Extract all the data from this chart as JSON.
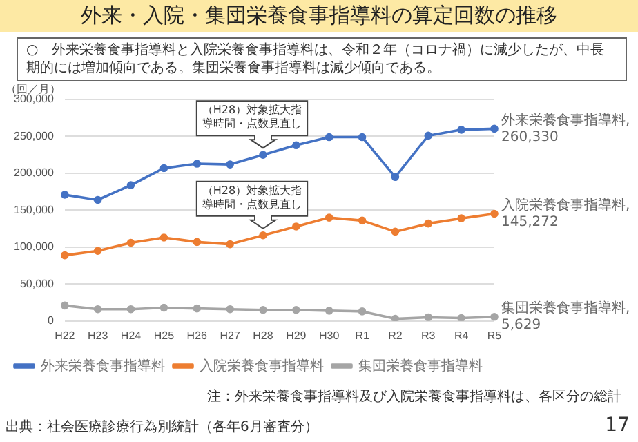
{
  "chart_data": {
    "type": "line",
    "title": "外来・入院・集団栄養食事指導料の算定回数の推移",
    "subtitle": "○　外来栄養食事指導料と入院栄養食事指導料は、令和２年（コロナ禍）に減少したが、中長期的には増加傾向である。集団栄養食事指導料は減少傾向である。",
    "ylabel": "（回／月）",
    "categories": [
      "H22",
      "H23",
      "H24",
      "H25",
      "H26",
      "H27",
      "H28",
      "H29",
      "H30",
      "R1",
      "R2",
      "R3",
      "R4",
      "R5"
    ],
    "series": [
      {
        "name": "外来栄養食事指導料",
        "color": "#4472c4",
        "values": [
          171000,
          164000,
          184000,
          207000,
          213000,
          212000,
          225000,
          238000,
          249000,
          249000,
          195000,
          251000,
          259000,
          260330
        ],
        "value_labels": [
          null,
          null,
          null,
          null,
          null,
          null,
          null,
          null,
          null,
          null,
          null,
          null,
          null,
          "外来栄養食事指導料,\n260,330"
        ]
      },
      {
        "name": "入院栄養食事指導料",
        "color": "#ed7d31",
        "values": [
          89000,
          95000,
          106000,
          113000,
          107000,
          104000,
          116000,
          128000,
          140000,
          136000,
          121000,
          132000,
          139000,
          145272
        ],
        "value_labels": [
          null,
          null,
          null,
          null,
          null,
          null,
          null,
          null,
          null,
          null,
          null,
          null,
          null,
          "入院栄養食事指導料,\n145,272"
        ]
      },
      {
        "name": "集団栄養食事指導料",
        "color": "#a5a5a5",
        "values": [
          21000,
          16000,
          16000,
          18000,
          17000,
          16000,
          15000,
          15000,
          14000,
          13000,
          3000,
          5000,
          4000,
          5629
        ],
        "value_labels": [
          null,
          null,
          null,
          null,
          null,
          null,
          null,
          null,
          null,
          null,
          null,
          null,
          null,
          "集団栄養食事指導料,\n5,629"
        ]
      }
    ],
    "ylim": [
      0,
      300000
    ],
    "yticks": [
      {
        "value": 0,
        "label": "0"
      },
      {
        "value": 50000,
        "label": "50,000"
      },
      {
        "value": 100000,
        "label": "100,000"
      },
      {
        "value": 150000,
        "label": "150,000"
      },
      {
        "value": 200000,
        "label": "200,000"
      },
      {
        "value": 250000,
        "label": "250,000"
      },
      {
        "value": 300000,
        "label": "300,000"
      }
    ],
    "grid": "y",
    "legend": "bottom",
    "marker": "circle",
    "annotations": [
      {
        "text": "（H28）対象拡大指導時間・点数見直し",
        "x": "H28",
        "y": 225000
      },
      {
        "text": "（H28）対象拡大指導時間・点数見直し",
        "x": "H28",
        "y": 116000
      },
      "注：外来栄養食事指導料及び入院栄養食事指導料は、各区分の総計",
      "出典：社会医療診療行為別統計（各年6月審査分）",
      "17"
    ]
  }
}
